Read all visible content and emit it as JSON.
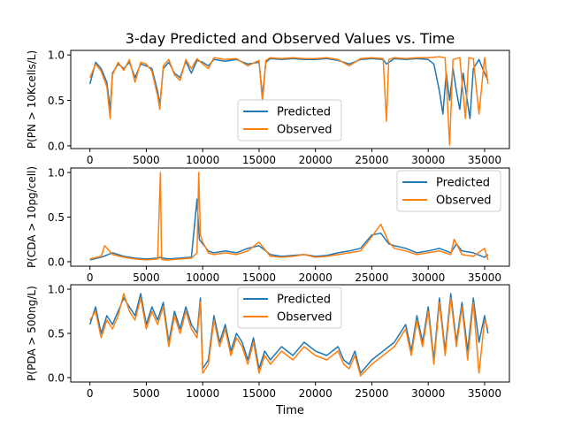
{
  "figure": {
    "title": "3-day Predicted and Observed Values vs. Time",
    "xlabel": "Time"
  },
  "chart_data": [
    {
      "type": "line",
      "title": "3-day Predicted and Observed Values vs. Time",
      "xlabel": "",
      "ylabel": "P(PN > 10Kcells/L)",
      "xlim": [
        -1700,
        37200
      ],
      "ylim": [
        -0.03,
        1.05
      ],
      "xticks": [
        0,
        5000,
        10000,
        15000,
        20000,
        25000,
        30000,
        35000
      ],
      "yticks": [
        0.0,
        0.5,
        1.0
      ],
      "ytick_labels": [
        "0.0",
        "0.5",
        "1.0"
      ],
      "legend": "lower-center",
      "series": [
        {
          "name": "Predicted",
          "color": "#1f77b4",
          "x": [
            0,
            500,
            1000,
            1500,
            1800,
            2000,
            2500,
            3000,
            3500,
            4000,
            4500,
            5000,
            5500,
            6000,
            6200,
            6500,
            7000,
            7500,
            8000,
            8500,
            9000,
            9500,
            10000,
            10500,
            11000,
            12000,
            13000,
            14000,
            15000,
            15300,
            15600,
            16000,
            17000,
            18000,
            19000,
            20000,
            21000,
            22000,
            23000,
            24000,
            25000,
            26000,
            26300,
            27000,
            28000,
            29000,
            30000,
            30500,
            31000,
            31300,
            31600,
            31900,
            32200,
            32500,
            32800,
            33100,
            33400,
            33700,
            34000,
            34500,
            35000,
            35300
          ],
          "values": [
            0.68,
            0.92,
            0.85,
            0.7,
            0.4,
            0.8,
            0.9,
            0.85,
            0.92,
            0.75,
            0.9,
            0.88,
            0.85,
            0.6,
            0.45,
            0.85,
            0.92,
            0.8,
            0.75,
            0.93,
            0.8,
            0.94,
            0.92,
            0.88,
            0.95,
            0.93,
            0.95,
            0.9,
            0.92,
            0.55,
            0.92,
            0.96,
            0.95,
            0.96,
            0.95,
            0.95,
            0.96,
            0.94,
            0.9,
            0.95,
            0.96,
            0.95,
            0.9,
            0.96,
            0.95,
            0.96,
            0.95,
            0.9,
            0.6,
            0.35,
            0.8,
            0.5,
            0.85,
            0.6,
            0.4,
            0.8,
            0.55,
            0.3,
            0.85,
            0.95,
            0.8,
            0.72
          ]
        },
        {
          "name": "Observed",
          "color": "#ff7f0e",
          "x": [
            0,
            500,
            1000,
            1500,
            1800,
            2000,
            2500,
            3000,
            3500,
            4000,
            4500,
            5000,
            5500,
            6000,
            6200,
            6500,
            7000,
            7500,
            8000,
            8500,
            9000,
            9500,
            10000,
            10500,
            11000,
            12000,
            13000,
            14000,
            15000,
            15300,
            15600,
            16000,
            17000,
            18000,
            19000,
            20000,
            21000,
            22000,
            23000,
            24000,
            25000,
            26000,
            26300,
            26500,
            27000,
            28000,
            29000,
            30000,
            31000,
            31500,
            31900,
            32200,
            32800,
            33300,
            33600,
            34000,
            34500,
            35000,
            35300
          ],
          "values": [
            0.75,
            0.9,
            0.82,
            0.65,
            0.3,
            0.78,
            0.92,
            0.83,
            0.95,
            0.7,
            0.92,
            0.9,
            0.82,
            0.55,
            0.4,
            0.88,
            0.95,
            0.78,
            0.72,
            0.95,
            0.85,
            0.96,
            0.9,
            0.85,
            0.97,
            0.95,
            0.96,
            0.88,
            0.94,
            0.48,
            0.94,
            0.97,
            0.96,
            0.97,
            0.96,
            0.96,
            0.97,
            0.95,
            0.88,
            0.96,
            0.97,
            0.96,
            0.27,
            0.95,
            0.97,
            0.96,
            0.97,
            0.97,
            0.98,
            0.97,
            0.01,
            0.95,
            0.97,
            0.3,
            0.97,
            0.96,
            0.35,
            0.97,
            0.68
          ]
        }
      ]
    },
    {
      "type": "line",
      "title": "",
      "xlabel": "",
      "ylabel": "P(CDA > 10pg/cell)",
      "xlim": [
        -1700,
        37200
      ],
      "ylim": [
        -0.05,
        1.05
      ],
      "xticks": [
        0,
        5000,
        10000,
        15000,
        20000,
        25000,
        30000,
        35000
      ],
      "yticks": [
        0.0,
        0.5,
        1.0
      ],
      "ytick_labels": [
        "0.0",
        "0.5",
        "1.0"
      ],
      "legend": "upper-right",
      "series": [
        {
          "name": "Predicted",
          "color": "#1f77b4",
          "x": [
            0,
            1000,
            2000,
            3000,
            4000,
            5000,
            6000,
            6300,
            6500,
            7000,
            8000,
            9000,
            9500,
            9700,
            10000,
            10500,
            11000,
            12000,
            13000,
            14000,
            15000,
            16000,
            17000,
            18000,
            19000,
            20000,
            21000,
            22000,
            23000,
            24000,
            25000,
            25800,
            26500,
            27000,
            28000,
            29000,
            30000,
            31000,
            32000,
            32500,
            33000,
            34000,
            35000,
            35300
          ],
          "values": [
            0.02,
            0.05,
            0.1,
            0.06,
            0.04,
            0.03,
            0.04,
            0.05,
            0.04,
            0.03,
            0.04,
            0.05,
            0.7,
            0.25,
            0.2,
            0.12,
            0.1,
            0.12,
            0.1,
            0.15,
            0.18,
            0.08,
            0.06,
            0.07,
            0.08,
            0.06,
            0.07,
            0.1,
            0.12,
            0.15,
            0.3,
            0.32,
            0.2,
            0.18,
            0.15,
            0.1,
            0.12,
            0.15,
            0.1,
            0.2,
            0.12,
            0.1,
            0.05,
            0.08
          ]
        },
        {
          "name": "Observed",
          "color": "#ff7f0e",
          "x": [
            0,
            1000,
            1300,
            2000,
            3000,
            4000,
            5000,
            6000,
            6250,
            6350,
            6500,
            7000,
            8000,
            9000,
            9500,
            9650,
            9800,
            10000,
            10500,
            11000,
            12000,
            13000,
            14000,
            15000,
            16000,
            17000,
            18000,
            19000,
            20000,
            21000,
            22000,
            23000,
            24000,
            25000,
            25800,
            26500,
            27000,
            28000,
            29000,
            30000,
            31000,
            32000,
            32300,
            33000,
            34000,
            35000,
            35300
          ],
          "values": [
            0.03,
            0.06,
            0.18,
            0.08,
            0.05,
            0.03,
            0.02,
            0.03,
            1.0,
            0.03,
            0.02,
            0.02,
            0.03,
            0.04,
            0.1,
            1.0,
            0.3,
            0.22,
            0.1,
            0.08,
            0.1,
            0.08,
            0.12,
            0.22,
            0.06,
            0.05,
            0.06,
            0.08,
            0.05,
            0.06,
            0.08,
            0.1,
            0.12,
            0.28,
            0.42,
            0.22,
            0.15,
            0.12,
            0.08,
            0.1,
            0.12,
            0.08,
            0.25,
            0.08,
            0.06,
            0.15,
            0.02
          ]
        }
      ]
    },
    {
      "type": "line",
      "title": "",
      "xlabel": "Time",
      "ylabel": "P(PDA > 500ng/L)",
      "xlim": [
        -1700,
        37200
      ],
      "ylim": [
        -0.05,
        1.05
      ],
      "xticks": [
        0,
        5000,
        10000,
        15000,
        20000,
        25000,
        30000,
        35000
      ],
      "yticks": [
        0.0,
        0.5,
        1.0
      ],
      "ytick_labels": [
        "0.0",
        "0.5",
        "1.0"
      ],
      "legend": "upper-center",
      "series": [
        {
          "name": "Predicted",
          "color": "#1f77b4",
          "x": [
            0,
            500,
            1000,
            1500,
            2000,
            2500,
            3000,
            3500,
            4000,
            4500,
            5000,
            5500,
            6000,
            6500,
            7000,
            7500,
            8000,
            8500,
            9000,
            9500,
            9800,
            10000,
            10500,
            11000,
            11500,
            12000,
            12500,
            13000,
            13500,
            14000,
            14500,
            15000,
            15500,
            16000,
            17000,
            18000,
            19000,
            20000,
            21000,
            22000,
            22500,
            23000,
            23500,
            24000,
            25000,
            26000,
            27000,
            28000,
            28500,
            29000,
            29500,
            30000,
            30500,
            31000,
            31500,
            32000,
            32500,
            33000,
            33500,
            34000,
            34500,
            35000,
            35300
          ],
          "values": [
            0.6,
            0.8,
            0.5,
            0.7,
            0.6,
            0.75,
            0.9,
            0.8,
            0.7,
            0.95,
            0.6,
            0.8,
            0.65,
            0.85,
            0.4,
            0.75,
            0.55,
            0.8,
            0.6,
            0.5,
            0.9,
            0.1,
            0.2,
            0.7,
            0.4,
            0.6,
            0.3,
            0.5,
            0.4,
            0.2,
            0.45,
            0.1,
            0.3,
            0.2,
            0.35,
            0.25,
            0.4,
            0.3,
            0.25,
            0.35,
            0.2,
            0.15,
            0.3,
            0.05,
            0.2,
            0.3,
            0.4,
            0.6,
            0.3,
            0.7,
            0.4,
            0.8,
            0.2,
            0.9,
            0.3,
            0.95,
            0.4,
            0.85,
            0.3,
            0.9,
            0.4,
            0.7,
            0.5
          ]
        },
        {
          "name": "Observed",
          "color": "#ff7f0e",
          "x": [
            0,
            500,
            1000,
            1500,
            2000,
            2500,
            3000,
            3500,
            4000,
            4500,
            5000,
            5500,
            6000,
            6500,
            7000,
            7500,
            8000,
            8500,
            9000,
            9500,
            9800,
            10000,
            10500,
            11000,
            11500,
            12000,
            12500,
            13000,
            13500,
            14000,
            14500,
            15000,
            15500,
            16000,
            17000,
            18000,
            19000,
            20000,
            21000,
            22000,
            22500,
            23000,
            23500,
            24000,
            25000,
            26000,
            27000,
            28000,
            28500,
            29000,
            29500,
            30000,
            30500,
            31000,
            31500,
            32000,
            32500,
            33000,
            33500,
            34000,
            34500,
            35000,
            35300
          ],
          "values": [
            0.65,
            0.75,
            0.45,
            0.65,
            0.55,
            0.7,
            0.95,
            0.75,
            0.65,
            0.9,
            0.55,
            0.75,
            0.6,
            0.8,
            0.35,
            0.7,
            0.5,
            0.75,
            0.55,
            0.45,
            0.85,
            0.05,
            0.15,
            0.65,
            0.35,
            0.55,
            0.25,
            0.45,
            0.35,
            0.15,
            0.4,
            0.05,
            0.25,
            0.15,
            0.3,
            0.2,
            0.35,
            0.25,
            0.2,
            0.3,
            0.15,
            0.1,
            0.25,
            0.02,
            0.15,
            0.25,
            0.35,
            0.55,
            0.25,
            0.65,
            0.35,
            0.75,
            0.15,
            0.85,
            0.25,
            0.9,
            0.35,
            0.8,
            0.2,
            0.85,
            0.05,
            0.65,
            0.55
          ]
        }
      ]
    }
  ]
}
